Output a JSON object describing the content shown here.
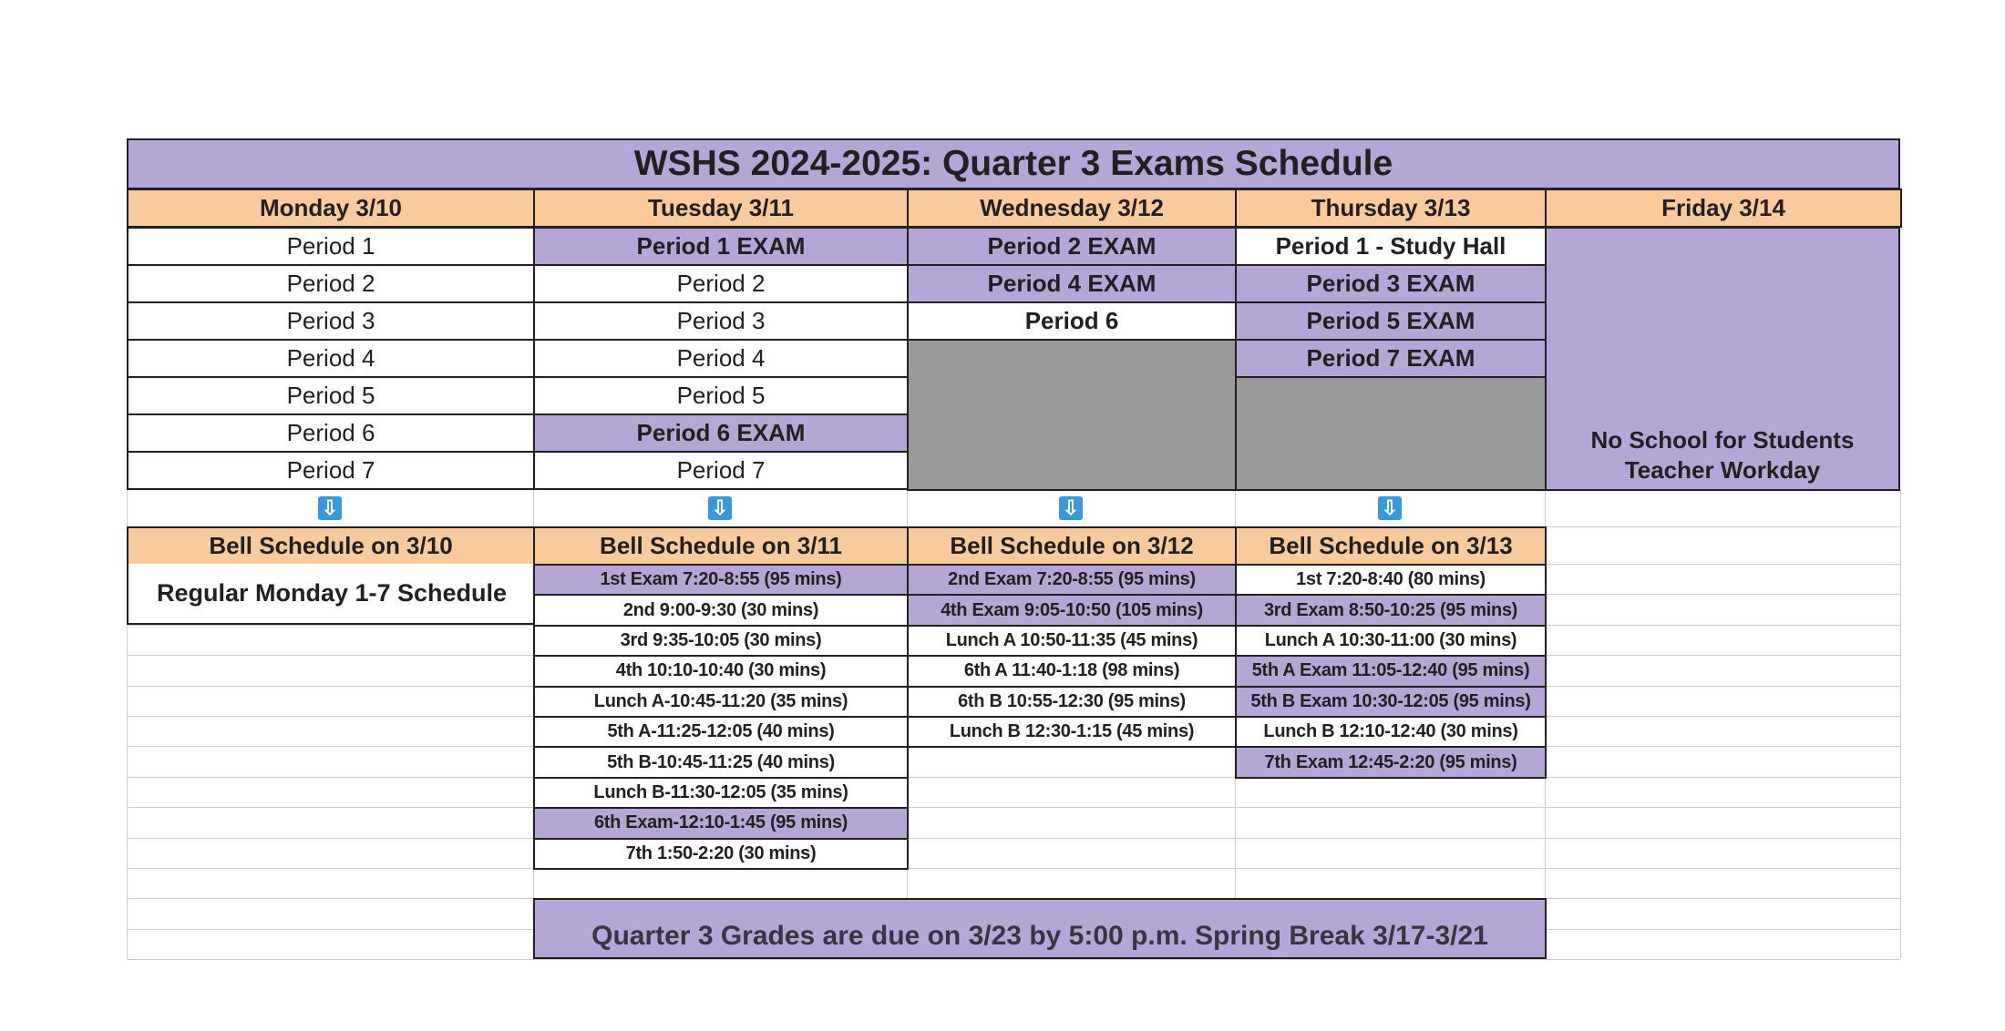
{
  "title": "WSHS 2024-2025: Quarter 3 Exams Schedule",
  "colors": {
    "purple": "#b4a7d6",
    "orange": "#f9cb9c",
    "gray": "#999999",
    "arrow": "#3a9ad9"
  },
  "days": [
    "Monday 3/10",
    "Tuesday 3/11",
    "Wednesday 3/12",
    "Thursday 3/13",
    "Friday 3/14"
  ],
  "periods": [
    [
      {
        "t": "Period 1"
      },
      {
        "t": "Period 2"
      },
      {
        "t": "Period 3"
      },
      {
        "t": "Period 4"
      },
      {
        "t": "Period 5"
      },
      {
        "t": "Period 6"
      },
      {
        "t": "Period 7"
      }
    ],
    [
      {
        "t": "Period 1 EXAM",
        "exam": true
      },
      {
        "t": "Period 2"
      },
      {
        "t": "Period 3"
      },
      {
        "t": "Period 4"
      },
      {
        "t": "Period 5"
      },
      {
        "t": "Period 6 EXAM",
        "exam": true
      },
      {
        "t": "Period 7"
      }
    ],
    [
      {
        "t": "Period 2 EXAM",
        "exam": true
      },
      {
        "t": "Period 4 EXAM",
        "exam": true
      },
      {
        "t": "Period 6",
        "bold": true
      }
    ],
    [
      {
        "t": "Period 1 - Study Hall",
        "bold": true
      },
      {
        "t": "Period 3 EXAM",
        "exam": true
      },
      {
        "t": "Period 5 EXAM",
        "exam": true
      },
      {
        "t": "Period 7 EXAM",
        "exam": true
      }
    ]
  ],
  "friday": {
    "line1": "No School for Students",
    "line2": "Teacher Workday"
  },
  "arrow_icon": "down-arrow-icon",
  "bell_headers": [
    "Bell Schedule on 3/10",
    "Bell Schedule on 3/11",
    "Bell Schedule on 3/12",
    "Bell Schedule on 3/13"
  ],
  "monday_bell": "Regular Monday 1-7 Schedule",
  "bell": [
    [],
    [
      {
        "t": "1st Exam 7:20-8:55 (95 mins)",
        "exam": true
      },
      {
        "t": "2nd 9:00-9:30 (30 mins)"
      },
      {
        "t": "3rd 9:35-10:05 (30 mins)"
      },
      {
        "t": "4th 10:10-10:40 (30 mins)"
      },
      {
        "t": "Lunch A-10:45-11:20 (35 mins)"
      },
      {
        "t": "5th A-11:25-12:05 (40 mins)"
      },
      {
        "t": "5th B-10:45-11:25 (40 mins)"
      },
      {
        "t": "Lunch B-11:30-12:05 (35 mins)"
      },
      {
        "t": "6th Exam-12:10-1:45 (95 mins)",
        "exam": true
      },
      {
        "t": "7th 1:50-2:20 (30 mins)"
      }
    ],
    [
      {
        "t": "2nd Exam 7:20-8:55 (95 mins)",
        "exam": true
      },
      {
        "t": "4th Exam 9:05-10:50 (105 mins)",
        "exam": true
      },
      {
        "t": "Lunch A 10:50-11:35 (45 mins)"
      },
      {
        "t": "6th A 11:40-1:18 (98 mins)"
      },
      {
        "t": "6th B 10:55-12:30 (95 mins)"
      },
      {
        "t": "Lunch B 12:30-1:15 (45 mins)"
      }
    ],
    [
      {
        "t": "1st 7:20-8:40 (80 mins)"
      },
      {
        "t": "3rd Exam 8:50-10:25 (95 mins)",
        "exam": true
      },
      {
        "t": "Lunch A 10:30-11:00 (30 mins)"
      },
      {
        "t": "5th A Exam 11:05-12:40 (95 mins)",
        "exam": true
      },
      {
        "t": "5th B Exam 10:30-12:05 (95 mins)",
        "exam": true
      },
      {
        "t": "Lunch B 12:10-12:40 (30 mins)"
      },
      {
        "t": "7th Exam 12:45-2:20 (95 mins)",
        "exam": true
      }
    ]
  ],
  "footer": "Quarter 3 Grades are due on 3/23 by 5:00 p.m. Spring Break 3/17-3/21"
}
